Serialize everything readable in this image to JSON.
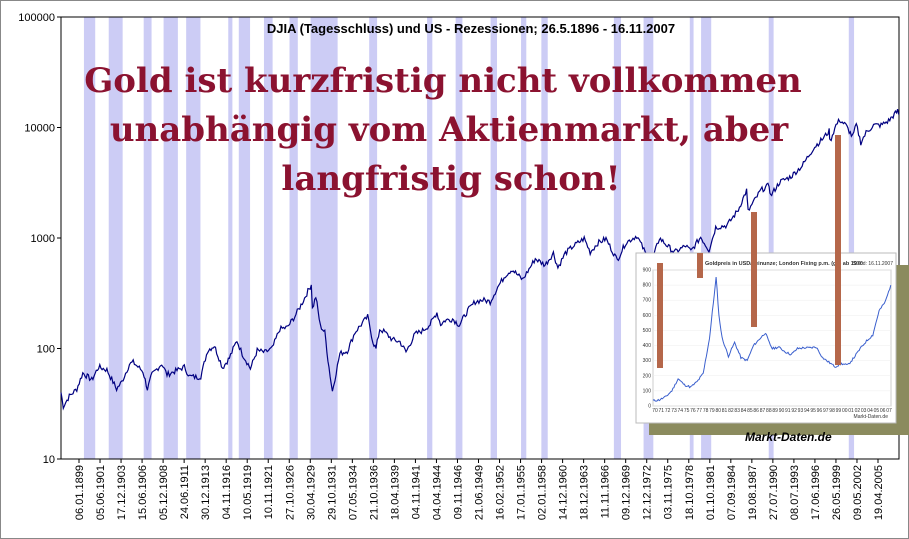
{
  "chart_data": {
    "type": "line",
    "title": "DJIA (Tagesschluss) und US - Rezessionen; 26.5.1896 - 16.11.2007",
    "y_scale": "log",
    "ylim": [
      10,
      100000
    ],
    "xlim": [
      "1896-05-26",
      "2007-11-16"
    ],
    "grid": false,
    "legend": "none",
    "y_ticks": [
      {
        "value": 10,
        "label": "10"
      },
      {
        "value": 100,
        "label": "100"
      },
      {
        "value": 1000,
        "label": "1000"
      },
      {
        "value": 10000,
        "label": "10000"
      },
      {
        "value": 100000,
        "label": "100000"
      }
    ],
    "x_tick_labels": [
      "06.01.1899",
      "05.06.1901",
      "17.12.1903",
      "15.06.1906",
      "05.12.1908",
      "24.06.1911",
      "30.12.1913",
      "04.11.1916",
      "10.05.1919",
      "10.11.1921",
      "27.10.1926",
      "30.04.1929",
      "29.10.1931",
      "07.05.1934",
      "21.10.1936",
      "18.04.1939",
      "04.11.1941",
      "04.04.1944",
      "09.11.1946",
      "21.06.1949",
      "16.02.1952",
      "17.01.1955",
      "02.01.1958",
      "14.12.1960",
      "18.12.1963",
      "11.11.1966",
      "09.12.1969",
      "12.12.1972",
      "03.11.1975",
      "18.10.1978",
      "01.10.1981",
      "07.09.1984",
      "19.08.1987",
      "27.07.1990",
      "08.07.1993",
      "17.06.1996",
      "26.05.1999",
      "09.05.2002",
      "19.04.2005"
    ],
    "series": [
      {
        "color": "#000080",
        "points": [
          [
            1896.4,
            40
          ],
          [
            1896.7,
            30
          ],
          [
            1897.5,
            37
          ],
          [
            1898.5,
            43
          ],
          [
            1899.3,
            60
          ],
          [
            1900.5,
            52
          ],
          [
            1901.4,
            68
          ],
          [
            1902.5,
            64
          ],
          [
            1903.8,
            43
          ],
          [
            1904.5,
            50
          ],
          [
            1905.5,
            72
          ],
          [
            1906.0,
            75
          ],
          [
            1907.3,
            62
          ],
          [
            1907.9,
            43
          ],
          [
            1908.5,
            58
          ],
          [
            1909.8,
            73
          ],
          [
            1910.5,
            58
          ],
          [
            1911.5,
            62
          ],
          [
            1912.8,
            68
          ],
          [
            1913.5,
            56
          ],
          [
            1914.5,
            55
          ],
          [
            1915.0,
            56
          ],
          [
            1915.9,
            96
          ],
          [
            1916.8,
            106
          ],
          [
            1917.9,
            67
          ],
          [
            1918.8,
            82
          ],
          [
            1919.8,
            118
          ],
          [
            1920.5,
            90
          ],
          [
            1921.6,
            66
          ],
          [
            1922.5,
            96
          ],
          [
            1923.5,
            92
          ],
          [
            1924.5,
            100
          ],
          [
            1925.5,
            150
          ],
          [
            1926.5,
            155
          ],
          [
            1927.5,
            195
          ],
          [
            1928.5,
            260
          ],
          [
            1929.7,
            381
          ],
          [
            1929.85,
            230
          ],
          [
            1930.3,
            294
          ],
          [
            1930.9,
            160
          ],
          [
            1931.5,
            140
          ],
          [
            1931.9,
            80
          ],
          [
            1932.5,
            41
          ],
          [
            1933.5,
            90
          ],
          [
            1934.5,
            95
          ],
          [
            1935.5,
            140
          ],
          [
            1936.5,
            170
          ],
          [
            1937.2,
            194
          ],
          [
            1937.9,
            115
          ],
          [
            1938.3,
            99
          ],
          [
            1938.8,
            150
          ],
          [
            1939.5,
            140
          ],
          [
            1940.5,
            120
          ],
          [
            1941.5,
            115
          ],
          [
            1942.3,
            93
          ],
          [
            1943.5,
            135
          ],
          [
            1944.5,
            145
          ],
          [
            1945.5,
            165
          ],
          [
            1946.4,
            212
          ],
          [
            1946.9,
            165
          ],
          [
            1947.5,
            180
          ],
          [
            1948.5,
            185
          ],
          [
            1949.4,
            163
          ],
          [
            1950.5,
            220
          ],
          [
            1951.5,
            265
          ],
          [
            1952.5,
            275
          ],
          [
            1953.5,
            265
          ],
          [
            1954.5,
            360
          ],
          [
            1955.5,
            460
          ],
          [
            1956.4,
            520
          ],
          [
            1957.8,
            420
          ],
          [
            1958.5,
            500
          ],
          [
            1959.5,
            650
          ],
          [
            1960.8,
            570
          ],
          [
            1961.9,
            730
          ],
          [
            1962.5,
            540
          ],
          [
            1963.5,
            730
          ],
          [
            1964.5,
            840
          ],
          [
            1966.0,
            990
          ],
          [
            1966.8,
            745
          ],
          [
            1967.8,
            900
          ],
          [
            1968.9,
            985
          ],
          [
            1970.4,
            630
          ],
          [
            1971.5,
            900
          ],
          [
            1973.0,
            1050
          ],
          [
            1974.9,
            577
          ],
          [
            1976.0,
            1000
          ],
          [
            1978.0,
            740
          ],
          [
            1979.5,
            850
          ],
          [
            1980.2,
            760
          ],
          [
            1981.5,
            1020
          ],
          [
            1982.6,
            777
          ],
          [
            1983.5,
            1250
          ],
          [
            1985.0,
            1300
          ],
          [
            1986.5,
            1800
          ],
          [
            1987.6,
            2700
          ],
          [
            1987.8,
            1740
          ],
          [
            1988.5,
            2100
          ],
          [
            1989.5,
            2700
          ],
          [
            1990.6,
            3000
          ],
          [
            1990.8,
            2400
          ],
          [
            1992.0,
            3200
          ],
          [
            1993.5,
            3600
          ],
          [
            1995.0,
            4500
          ],
          [
            1996.5,
            6500
          ],
          [
            1997.8,
            8000
          ],
          [
            1998.6,
            9300
          ],
          [
            1998.7,
            7500
          ],
          [
            1999.5,
            10500
          ],
          [
            2000.0,
            11700
          ],
          [
            2000.8,
            10500
          ],
          [
            2001.7,
            8200
          ],
          [
            2002.2,
            10600
          ],
          [
            2002.8,
            7300
          ],
          [
            2003.5,
            9000
          ],
          [
            2004.5,
            10500
          ],
          [
            2005.5,
            10500
          ],
          [
            2006.5,
            11500
          ],
          [
            2007.7,
            14100
          ],
          [
            2007.87,
            13100
          ]
        ]
      }
    ],
    "shaded_periods_label": "US - Rezessionen",
    "recessions": [
      [
        1899.45,
        1900.95
      ],
      [
        1902.75,
        1904.6
      ],
      [
        1907.4,
        1908.45
      ],
      [
        1910.05,
        1911.95
      ],
      [
        1913.05,
        1914.95
      ],
      [
        1918.65,
        1919.2
      ],
      [
        1920.05,
        1921.55
      ],
      [
        1923.4,
        1924.55
      ],
      [
        1926.8,
        1927.9
      ],
      [
        1929.6,
        1933.2
      ],
      [
        1937.4,
        1938.45
      ],
      [
        1945.1,
        1945.8
      ],
      [
        1948.9,
        1949.8
      ],
      [
        1953.55,
        1954.4
      ],
      [
        1957.6,
        1958.3
      ],
      [
        1960.3,
        1961.15
      ],
      [
        1969.95,
        1970.9
      ],
      [
        1973.9,
        1975.2
      ],
      [
        1980.05,
        1980.55
      ],
      [
        1981.55,
        1982.9
      ],
      [
        1990.55,
        1991.2
      ],
      [
        2001.2,
        2001.9
      ]
    ]
  },
  "overlay": {
    "lines": [
      "Gold ist kurzfristig nicht vollkommen",
      "unabhängig vom Aktienmarkt, aber",
      "langfristig schon!"
    ],
    "color": "#8b1230"
  },
  "inset": {
    "title": "Goldpreis in USD/Feinunze; London Fixing p.m. (gl.) ab 1970",
    "stand": "Stand: 16.11.2007",
    "source": "Markt-Daten.de",
    "y_ticks": [
      "900",
      "800",
      "700",
      "600",
      "500",
      "400",
      "300",
      "200",
      "100",
      "0"
    ],
    "x_ticks": [
      "70",
      "71",
      "72",
      "73",
      "74",
      "75",
      "76",
      "77",
      "78",
      "79",
      "80",
      "81",
      "82",
      "83",
      "84",
      "85",
      "86",
      "87",
      "88",
      "89",
      "90",
      "91",
      "92",
      "93",
      "94",
      "95",
      "96",
      "97",
      "98",
      "99",
      "00",
      "01",
      "02",
      "03",
      "04",
      "05",
      "06",
      "07"
    ],
    "gold_series": [
      [
        1970,
        35
      ],
      [
        1971,
        40
      ],
      [
        1972,
        60
      ],
      [
        1973,
        100
      ],
      [
        1974,
        180
      ],
      [
        1975,
        140
      ],
      [
        1976,
        125
      ],
      [
        1977,
        160
      ],
      [
        1978,
        215
      ],
      [
        1979,
        450
      ],
      [
        1980.05,
        850
      ],
      [
        1980.5,
        600
      ],
      [
        1981,
        450
      ],
      [
        1982,
        330
      ],
      [
        1983,
        420
      ],
      [
        1984,
        320
      ],
      [
        1985,
        300
      ],
      [
        1986,
        400
      ],
      [
        1987.9,
        485
      ],
      [
        1988.5,
        420
      ],
      [
        1989,
        380
      ],
      [
        1990,
        390
      ],
      [
        1991,
        360
      ],
      [
        1992,
        340
      ],
      [
        1993,
        380
      ],
      [
        1994,
        385
      ],
      [
        1995,
        385
      ],
      [
        1996,
        390
      ],
      [
        1997,
        320
      ],
      [
        1998,
        290
      ],
      [
        1999,
        260
      ],
      [
        2000,
        280
      ],
      [
        2001,
        270
      ],
      [
        2002,
        320
      ],
      [
        2003,
        380
      ],
      [
        2004,
        430
      ],
      [
        2005,
        470
      ],
      [
        2006,
        630
      ],
      [
        2007,
        690
      ],
      [
        2007.87,
        800
      ]
    ]
  },
  "credit": "Markt-Daten.de",
  "colors": {
    "recession_band": "#ccccf5",
    "djia_line": "#000080",
    "marker_bars": "#b5674a",
    "inset_line": "#3a5fcd"
  }
}
